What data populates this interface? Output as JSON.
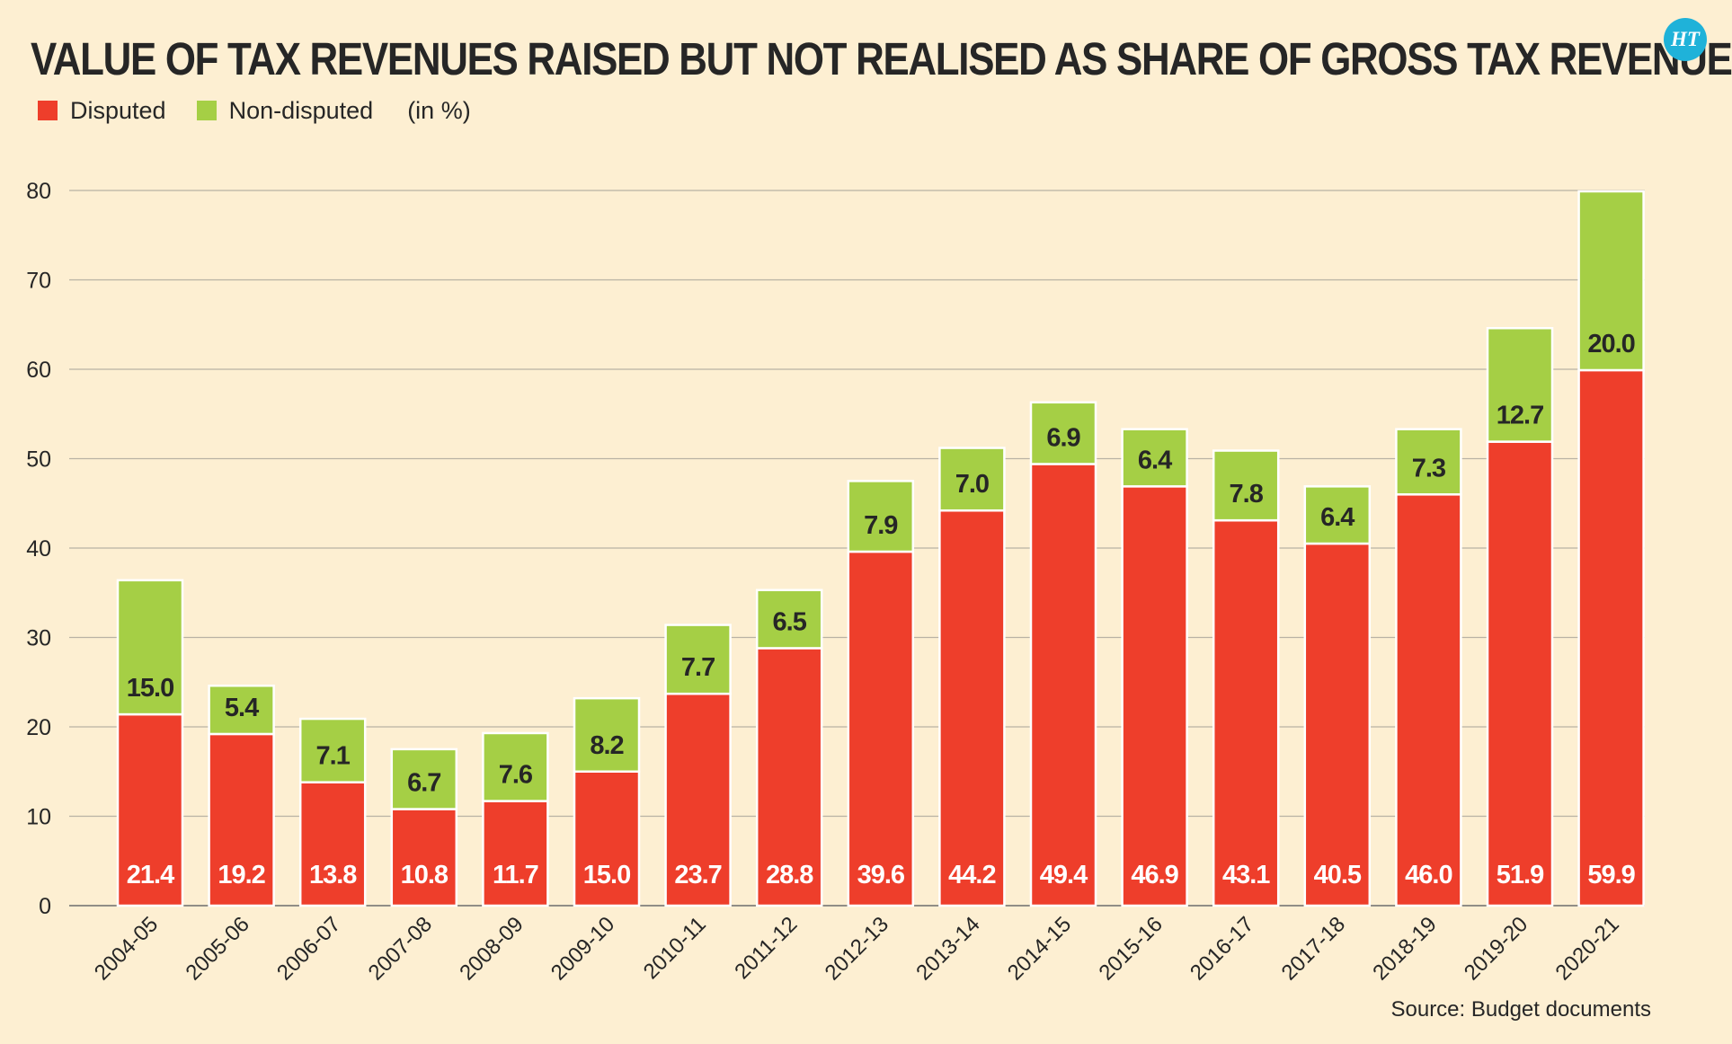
{
  "header": {
    "title": "VALUE OF TAX REVENUES RAISED BUT NOT REALISED AS SHARE OF GROSS TAX REVENUE",
    "logo_text": "HT"
  },
  "legend": {
    "items": [
      {
        "label": "Disputed",
        "color": "#ee3e2b"
      },
      {
        "label": "Non-disputed",
        "color": "#a5cf45"
      }
    ],
    "unit": "(in %)"
  },
  "source": "Source: Budget documents",
  "chart_data": {
    "type": "bar",
    "stacked": true,
    "categories": [
      "2004-05",
      "2005-06",
      "2006-07",
      "2007-08",
      "2008-09",
      "2009-10",
      "2010-11",
      "2011-12",
      "2012-13",
      "2013-14",
      "2014-15",
      "2015-16",
      "2016-17",
      "2017-18",
      "2018-19",
      "2019-20",
      "2020-21"
    ],
    "series": [
      {
        "name": "Disputed",
        "color": "#ee3e2b",
        "values": [
          21.4,
          19.2,
          13.8,
          10.8,
          11.7,
          15.0,
          23.7,
          28.8,
          39.6,
          44.2,
          49.4,
          46.9,
          43.1,
          40.5,
          46.0,
          51.9,
          59.9
        ]
      },
      {
        "name": "Non-disputed",
        "color": "#a5cf45",
        "values": [
          15.0,
          5.4,
          7.1,
          6.7,
          7.6,
          8.2,
          7.7,
          6.5,
          7.9,
          7.0,
          6.9,
          6.4,
          7.8,
          6.4,
          7.3,
          12.7,
          20.0
        ]
      }
    ],
    "yticks": [
      0,
      10,
      20,
      30,
      40,
      50,
      60,
      70,
      80
    ],
    "ylim": [
      0,
      80
    ],
    "grid": true
  }
}
